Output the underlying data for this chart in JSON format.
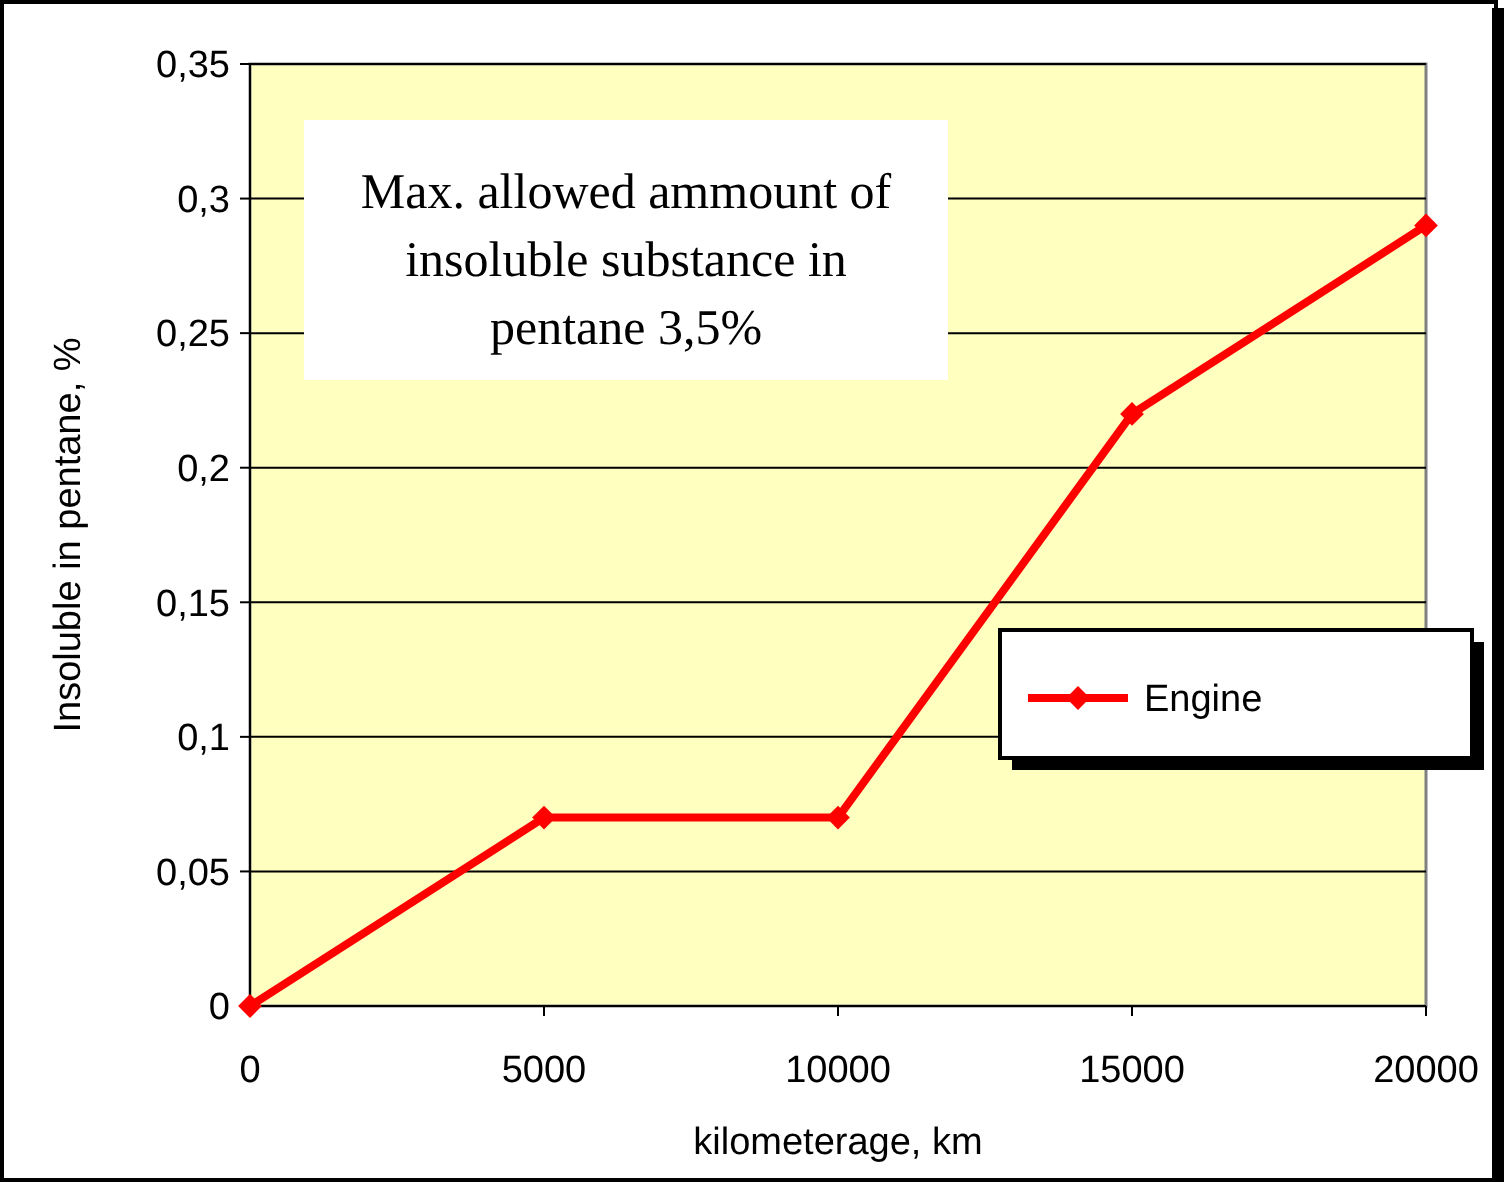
{
  "chart_data": {
    "type": "line",
    "xlabel": "kilometerage, km",
    "ylabel": "Insoluble in pentane, %",
    "annotations": [
      "Max. allowed ammount of  insoluble substance in pentane 3,5%"
    ],
    "x": [
      0,
      5000,
      10000,
      15000,
      20000
    ],
    "series": [
      {
        "name": "Engine",
        "color": "#ff0000",
        "values": [
          0,
          0.07,
          0.07,
          0.22,
          0.29
        ]
      }
    ],
    "xlim": [
      0,
      20000
    ],
    "xticks": [
      0,
      5000,
      10000,
      15000,
      20000
    ],
    "ylim": [
      0,
      0.35
    ],
    "yticks": [
      0,
      {
        "value": 0.05,
        "label": "0,05"
      },
      {
        "value": 0.1,
        "label": "0,1"
      },
      {
        "value": 0.15,
        "label": "0,15"
      },
      {
        "value": 0.2,
        "label": "0,2"
      },
      {
        "value": 0.25,
        "label": "0,25"
      },
      {
        "value": 0.3,
        "label": "0,3"
      },
      {
        "value": 0.35,
        "label": "0,35"
      }
    ],
    "grid": "y",
    "legend": "right",
    "marker": "diamond",
    "line_style": "solid"
  }
}
